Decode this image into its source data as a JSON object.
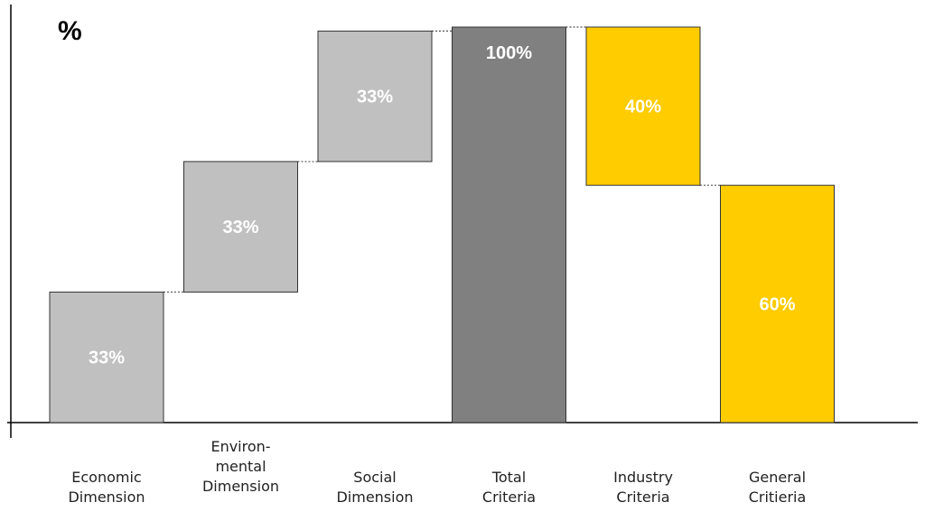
{
  "chart_data": {
    "type": "bar",
    "subtype": "waterfall",
    "unit_label": "%",
    "ylim": [
      0,
      100
    ],
    "grid": false,
    "categories": [
      [
        "Economic",
        "Dimension"
      ],
      [
        "Environ-",
        "mental",
        "Dimension"
      ],
      [
        "Social",
        "Dimension"
      ],
      [
        "Total",
        "Criteria"
      ],
      [
        "Industry",
        "Criteria"
      ],
      [
        "General",
        "Critieria"
      ]
    ],
    "bars": [
      {
        "start": 0,
        "end": 33,
        "label": "33%",
        "color": "#c0c0c0"
      },
      {
        "start": 33,
        "end": 66,
        "label": "33%",
        "color": "#c0c0c0"
      },
      {
        "start": 66,
        "end": 99,
        "label": "33%",
        "color": "#c0c0c0"
      },
      {
        "start": 0,
        "end": 100,
        "label": "100%",
        "color": "#808080"
      },
      {
        "start": 60,
        "end": 100,
        "label": "40%",
        "color": "#ffcc00"
      },
      {
        "start": 0,
        "end": 60,
        "label": "60%",
        "color": "#ffcc00"
      }
    ]
  }
}
